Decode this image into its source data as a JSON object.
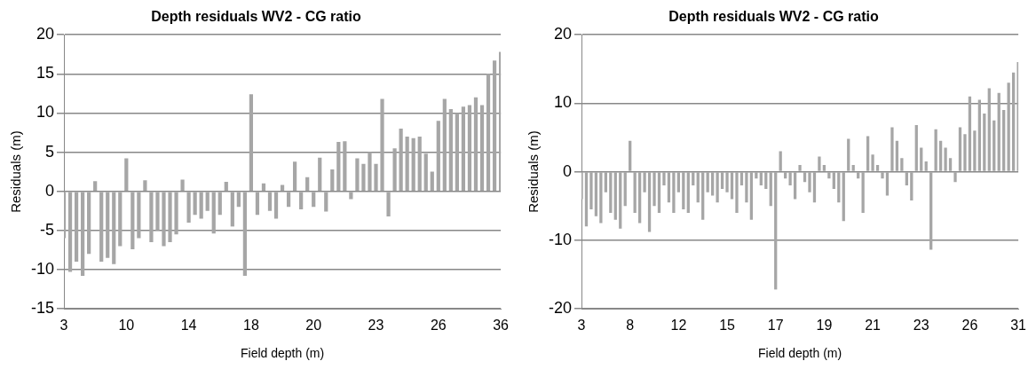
{
  "chart_data": [
    {
      "type": "bar",
      "title": "Depth residuals WV2 - CG ratio",
      "xlabel": "Field depth (m)",
      "ylabel": "Residuals (m)",
      "color": "#a6a6a6",
      "categories": [
        "3",
        null,
        null,
        null,
        null,
        null,
        null,
        null,
        null,
        null,
        "10",
        null,
        null,
        null,
        null,
        null,
        null,
        null,
        null,
        null,
        "14",
        null,
        null,
        null,
        null,
        null,
        null,
        null,
        null,
        null,
        "18",
        null,
        null,
        null,
        null,
        null,
        null,
        null,
        null,
        null,
        "20",
        null,
        null,
        null,
        null,
        null,
        null,
        null,
        null,
        null,
        "23",
        null,
        null,
        null,
        null,
        null,
        null,
        null,
        null,
        null,
        "26",
        null,
        null,
        null,
        null,
        null,
        null,
        null,
        null,
        null,
        "36"
      ],
      "values": [
        -6,
        -10.3,
        -9,
        -10.8,
        -8,
        1.3,
        -9,
        -8.5,
        -9.3,
        -7,
        4.2,
        -7.4,
        -6,
        1.4,
        -6.5,
        -5,
        -7,
        -6.5,
        -5.5,
        1.5,
        -4,
        -3,
        -3.5,
        -2.5,
        -5.4,
        -3,
        1.2,
        -4.5,
        -2,
        -10.8,
        12.4,
        -3,
        1,
        -2.5,
        -3.5,
        0.8,
        -2,
        3.8,
        -2.3,
        1.8,
        -2,
        4.3,
        -2.6,
        2.8,
        6.3,
        6.4,
        -1,
        4.2,
        3.5,
        5,
        3.5,
        11.8,
        -3.2,
        5.5,
        8,
        7,
        6.8,
        7,
        4.8,
        2.5,
        9,
        11.8,
        10.5,
        10,
        10.8,
        11,
        12,
        11,
        15,
        16.7,
        17.8
      ],
      "ylim": [
        -15,
        20
      ],
      "yticks": [
        -15,
        -10,
        -5,
        0,
        5,
        10,
        15,
        20
      ],
      "grid": "y",
      "legend": false
    },
    {
      "type": "bar",
      "title": "Depth residuals WV2 - CG ratio",
      "xlabel": "Field depth (m)",
      "ylabel": "Residuals (m)",
      "color": "#a6a6a6",
      "categories": [
        "3",
        null,
        null,
        null,
        null,
        null,
        null,
        null,
        null,
        null,
        "8",
        null,
        null,
        null,
        null,
        null,
        null,
        null,
        null,
        null,
        "12",
        null,
        null,
        null,
        null,
        null,
        null,
        null,
        null,
        null,
        "15",
        null,
        null,
        null,
        null,
        null,
        null,
        null,
        null,
        null,
        "17",
        null,
        null,
        null,
        null,
        null,
        null,
        null,
        null,
        null,
        "19",
        null,
        null,
        null,
        null,
        null,
        null,
        null,
        null,
        null,
        "21",
        null,
        null,
        null,
        null,
        null,
        null,
        null,
        null,
        null,
        "23",
        null,
        null,
        null,
        null,
        null,
        null,
        null,
        null,
        null,
        "26",
        null,
        null,
        null,
        null,
        null,
        null,
        null,
        null,
        null,
        "31"
      ],
      "values": [
        -4,
        -8,
        -5.5,
        -6.5,
        -7.5,
        -3,
        -6,
        -7,
        -8.3,
        -5,
        4.5,
        -6,
        -7.5,
        -3,
        -8.8,
        -5,
        -6,
        -2,
        -4.5,
        -6,
        -3,
        -5.5,
        -6,
        -2,
        -4.5,
        -7,
        -3,
        -3.5,
        -4.5,
        -2.5,
        -3,
        -4,
        -6,
        -2,
        -4.5,
        -7,
        -1,
        -2,
        -2.5,
        -5,
        -17.2,
        3,
        -1,
        -2,
        -4,
        1,
        -1.5,
        -3,
        -4.5,
        2.2,
        1,
        -1,
        -2.5,
        -4.5,
        -7.2,
        4.8,
        1,
        -1,
        -6,
        5.2,
        2.5,
        1,
        -1,
        -3.5,
        6.5,
        4.5,
        2,
        -2,
        -4.2,
        6.8,
        3.5,
        1.5,
        -11.4,
        6.2,
        4.5,
        3.5,
        2,
        -1.5,
        6.5,
        5.5,
        11,
        6,
        10.5,
        8.5,
        12.2,
        7.5,
        11.5,
        9,
        13,
        14.5,
        16
      ],
      "ylim": [
        -20,
        20
      ],
      "yticks": [
        -20,
        -10,
        0,
        10,
        20
      ],
      "grid": "y",
      "legend": false
    }
  ]
}
